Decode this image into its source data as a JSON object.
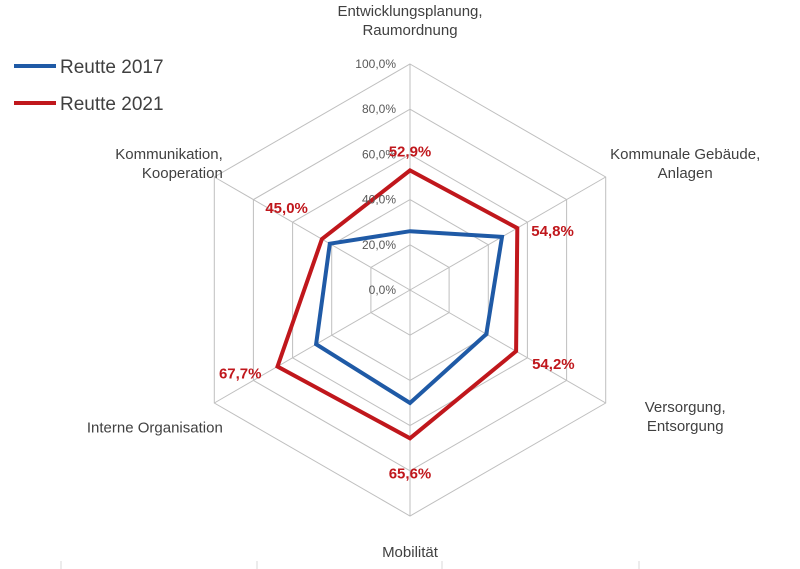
{
  "chart_data": {
    "type": "radar",
    "categories": [
      [
        "Entwicklungsplanung,",
        "Raumordnung"
      ],
      [
        "Kommunale Gebäude,",
        "Anlagen"
      ],
      [
        "Versorgung,",
        "Entsorgung"
      ],
      [
        "Mobilität"
      ],
      [
        "Interne Organisation"
      ],
      [
        "Kommunikation,",
        "Kooperation"
      ]
    ],
    "ticks": [
      "0,0%",
      "20,0%",
      "40,0%",
      "60,0%",
      "80,0%",
      "100,0%"
    ],
    "rlim": [
      0,
      100
    ],
    "grid": true,
    "legend_position": "top-left",
    "series": [
      {
        "name": "Reutte 2017",
        "color": "#1f5aa6",
        "values": [
          26.0,
          47.0,
          39.0,
          50.0,
          48.0,
          41.0
        ],
        "labels": null
      },
      {
        "name": "Reutte 2021",
        "color": "#c0171c",
        "values": [
          52.9,
          54.8,
          54.2,
          65.6,
          67.7,
          45.0
        ],
        "labels": [
          "52,9%",
          "54,8%",
          "54,2%",
          "65,6%",
          "67,7%",
          "45,0%"
        ]
      }
    ]
  }
}
